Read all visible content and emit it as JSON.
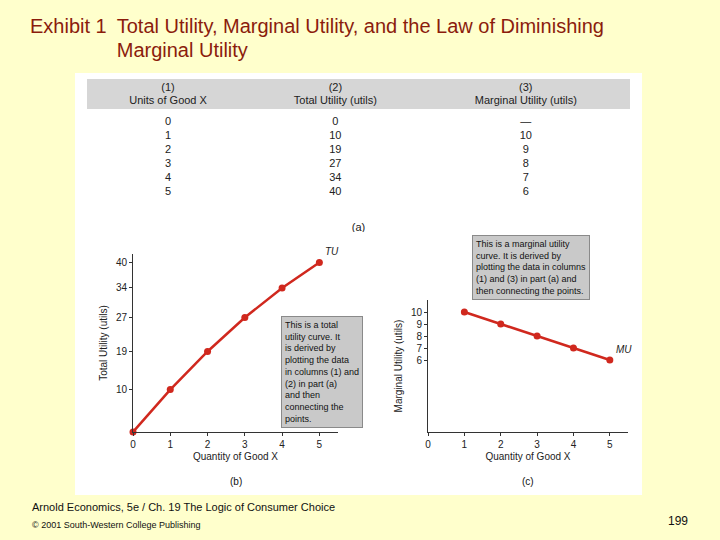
{
  "header": {
    "exhibit": "Exhibit 1",
    "title": "Total Utility, Marginal Utility, and the Law of Diminishing Marginal Utility"
  },
  "table": {
    "caption": "(a)",
    "columns": [
      {
        "number": "(1)",
        "label": "Units of Good X"
      },
      {
        "number": "(2)",
        "label": "Total Utility (utils)"
      },
      {
        "number": "(3)",
        "label": "Marginal Utility (utils)"
      }
    ],
    "rows": [
      [
        0,
        0,
        "—"
      ],
      [
        1,
        10,
        10
      ],
      [
        2,
        19,
        9
      ],
      [
        3,
        27,
        8
      ],
      [
        4,
        34,
        7
      ],
      [
        5,
        40,
        6
      ]
    ]
  },
  "chart_data": [
    {
      "type": "line",
      "caption": "(b)",
      "x_label": "Quantity of Good X",
      "y_label": "Total Utility (utils)",
      "x": [
        0,
        1,
        2,
        3,
        4,
        5
      ],
      "series": [
        {
          "name": "TU",
          "color": "#d0281e",
          "marker": "circle",
          "values": [
            0,
            10,
            19,
            27,
            34,
            40
          ]
        }
      ],
      "xlim": [
        0,
        5.5
      ],
      "xticks": [
        0,
        1,
        2,
        3,
        4,
        5
      ],
      "ylim": [
        0,
        42
      ],
      "yticks": [
        10,
        19,
        27,
        34,
        40
      ],
      "grid": false,
      "annotations": [
        "This is a total utility curve. It is derived by plotting the data in columns (1) and (2) in part (a) and then connecting the points."
      ]
    },
    {
      "type": "line",
      "caption": "(c)",
      "x_label": "Quantity of Good X",
      "y_label": "Marginal Utility (utils)",
      "x": [
        1,
        2,
        3,
        4,
        5
      ],
      "series": [
        {
          "name": "MU",
          "color": "#d0281e",
          "marker": "circle",
          "values": [
            10,
            9,
            8,
            7,
            6
          ]
        }
      ],
      "xlim": [
        0,
        5.5
      ],
      "xticks": [
        0,
        1,
        2,
        3,
        4,
        5
      ],
      "ylim": [
        0,
        11
      ],
      "yticks": [
        6,
        7,
        8,
        9,
        10
      ],
      "grid": false,
      "annotations": [
        "This is a marginal utility curve. It is derived by plotting the data in columns (1) and (3) in part (a) and then connecting the points."
      ]
    }
  ],
  "footer": {
    "source": "Arnold Economics, 5e / Ch. 19 The Logic of Consumer Choice",
    "copyright": "© 2001 South-Western College Publishing",
    "page": "199"
  }
}
